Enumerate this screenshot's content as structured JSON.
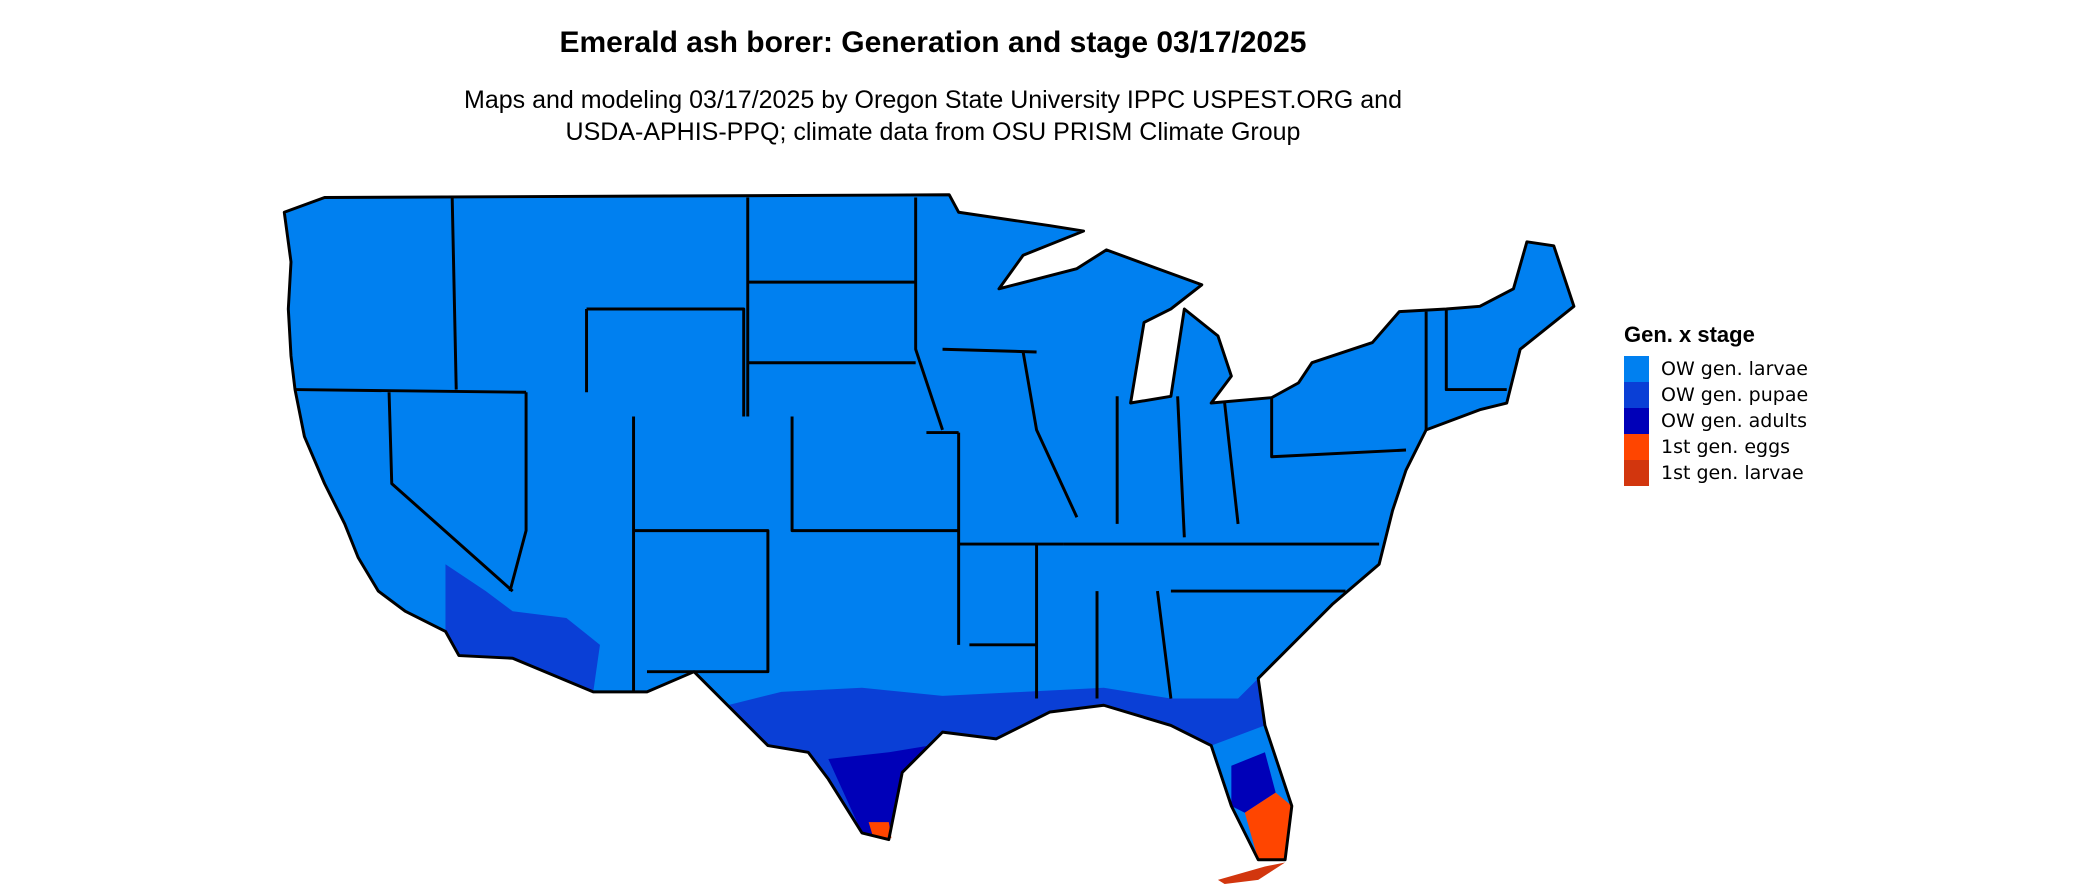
{
  "title": "Emerald ash borer: Generation and stage 03/17/2025",
  "subtitle_lines": [
    "Maps and modeling 03/17/2025 by Oregon State University IPPC USPEST.ORG and",
    "USDA-APHIS-PPQ; climate data from OSU PRISM Climate Group"
  ],
  "legend": {
    "title": "Gen. x stage",
    "items": [
      {
        "label": "OW gen. larvae",
        "color": "#0080f0"
      },
      {
        "label": "OW gen. pupae",
        "color": "#0a3fd6"
      },
      {
        "label": "OW gen. adults",
        "color": "#0000b8"
      },
      {
        "label": "1st gen. eggs",
        "color": "#ff4500"
      },
      {
        "label": "1st gen. larvae",
        "color": "#d2360e"
      }
    ]
  }
}
